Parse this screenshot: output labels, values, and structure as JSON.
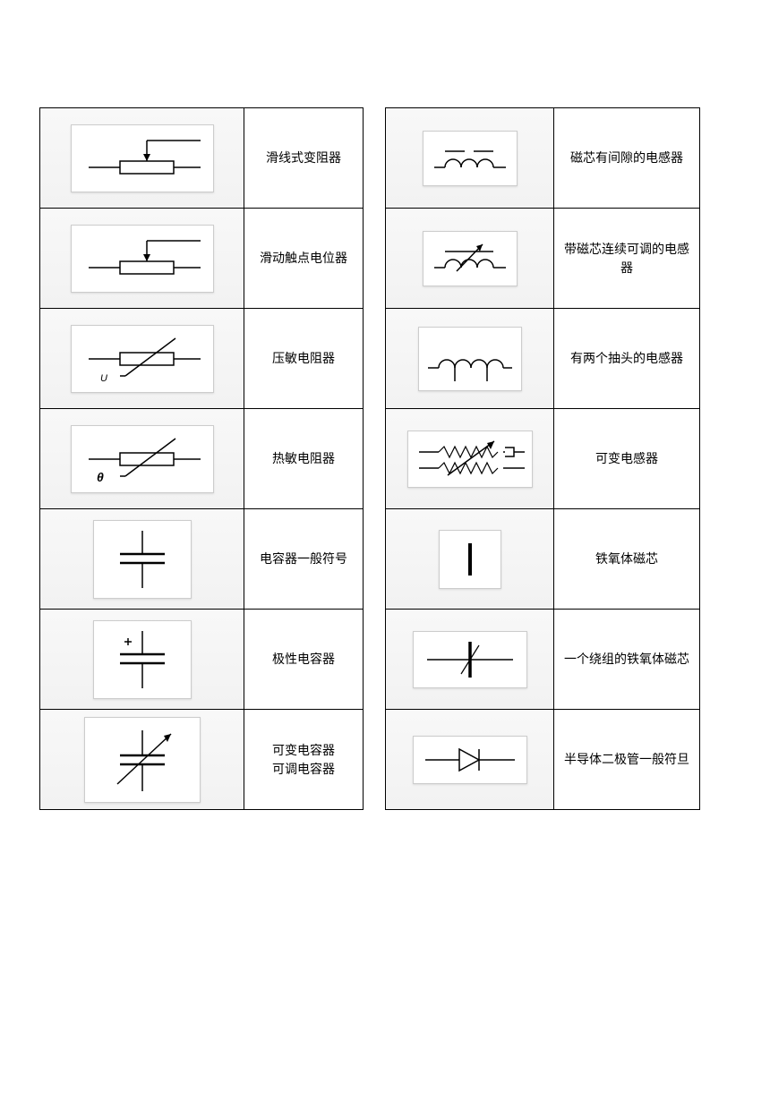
{
  "columns": [
    {
      "rows": [
        {
          "label": "滑线式变阻器",
          "symbol": "rheostat-slider"
        },
        {
          "label": "滑动触点电位器",
          "symbol": "potentiometer-slider"
        },
        {
          "label": "压敏电阻器",
          "symbol": "varistor"
        },
        {
          "label": "热敏电阻器",
          "symbol": "thermistor"
        },
        {
          "label": "电容器一般符号",
          "symbol": "capacitor"
        },
        {
          "label": "极性电容器",
          "symbol": "polar-capacitor"
        },
        {
          "label": "可变电容器\n可调电容器",
          "symbol": "variable-capacitor"
        }
      ]
    },
    {
      "rows": [
        {
          "label": "磁芯有间隙的电感器",
          "symbol": "inductor-gap-core"
        },
        {
          "label": "带磁芯连续可调的电感器",
          "symbol": "inductor-adjustable-core"
        },
        {
          "label": "有两个抽头的电感器",
          "symbol": "inductor-two-taps"
        },
        {
          "label": "可变电感器",
          "symbol": "variable-inductor"
        },
        {
          "label": "铁氧体磁芯",
          "symbol": "ferrite-core"
        },
        {
          "label": "一个绕组的铁氧体磁芯",
          "symbol": "ferrite-core-winding"
        },
        {
          "label": "半导体二极管一般符旦",
          "symbol": "diode"
        }
      ]
    }
  ],
  "style": {
    "cell_bg": "#f5f5f5",
    "frame_border": "#cccccc",
    "stroke": "#000000",
    "stroke_width": 1.5,
    "font_size": 14
  }
}
